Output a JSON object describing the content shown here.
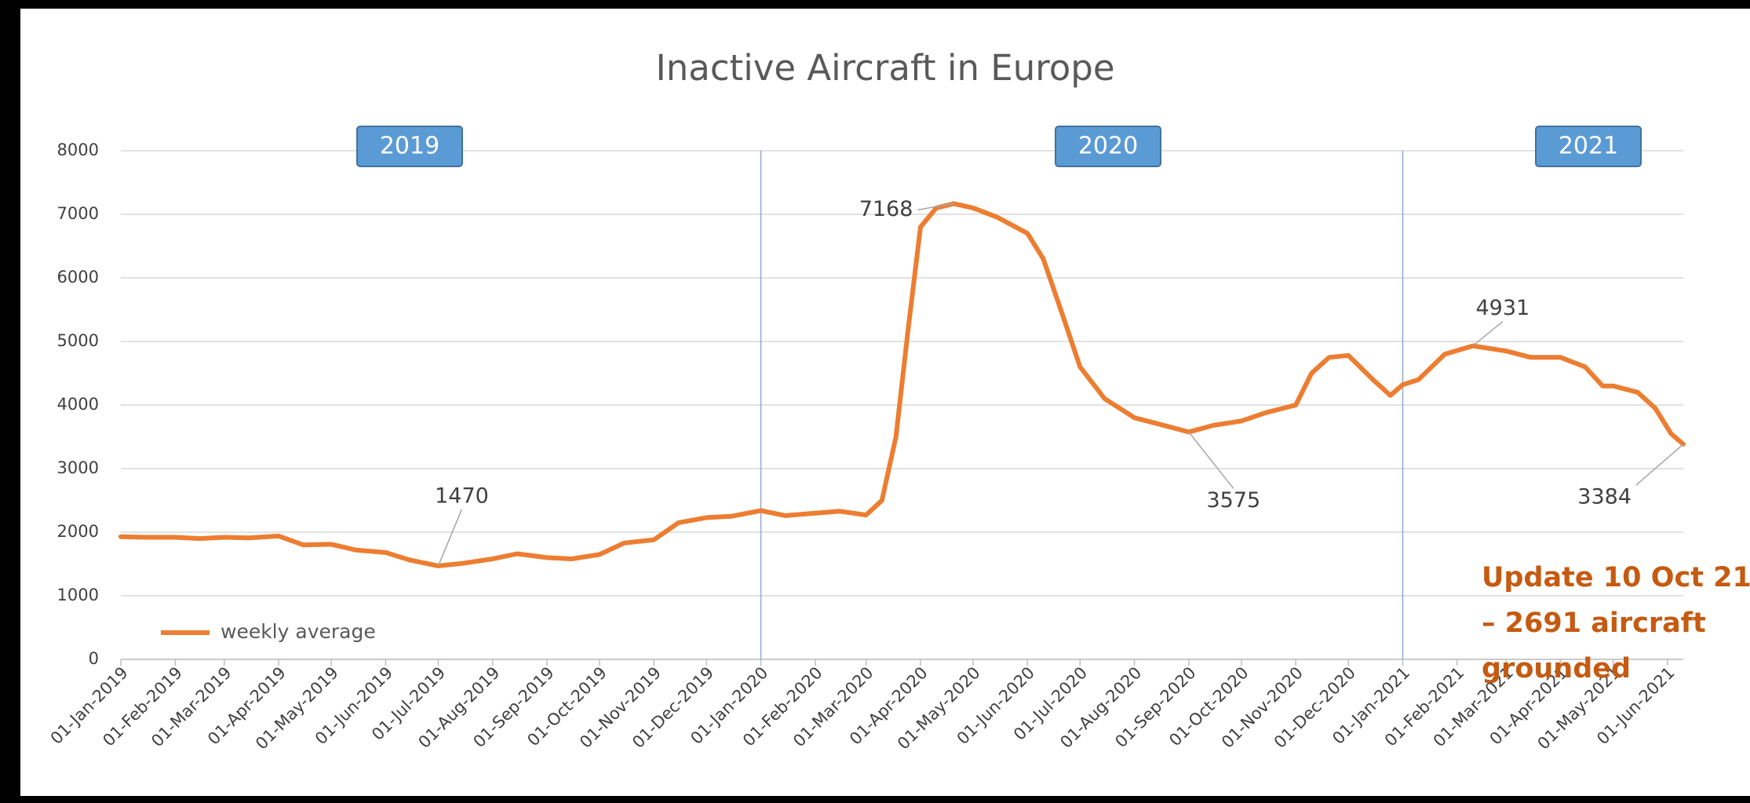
{
  "chart_data": {
    "type": "line",
    "title": "Inactive Aircraft in Europe",
    "x": [
      "01-Jan-2019",
      "15-Jan-2019",
      "01-Feb-2019",
      "15-Feb-2019",
      "01-Mar-2019",
      "15-Mar-2019",
      "01-Apr-2019",
      "15-Apr-2019",
      "01-May-2019",
      "15-May-2019",
      "01-Jun-2019",
      "15-Jun-2019",
      "01-Jul-2019",
      "15-Jul-2019",
      "01-Aug-2019",
      "15-Aug-2019",
      "01-Sep-2019",
      "15-Sep-2019",
      "01-Oct-2019",
      "15-Oct-2019",
      "01-Nov-2019",
      "15-Nov-2019",
      "01-Dec-2019",
      "15-Dec-2019",
      "01-Jan-2020",
      "15-Jan-2020",
      "01-Feb-2020",
      "15-Feb-2020",
      "01-Mar-2020",
      "10-Mar-2020",
      "18-Mar-2020",
      "25-Mar-2020",
      "01-Apr-2020",
      "10-Apr-2020",
      "20-Apr-2020",
      "01-May-2020",
      "15-May-2020",
      "01-Jun-2020",
      "10-Jun-2020",
      "20-Jun-2020",
      "01-Jul-2020",
      "15-Jul-2020",
      "01-Aug-2020",
      "15-Aug-2020",
      "01-Sep-2020",
      "15-Sep-2020",
      "01-Oct-2020",
      "15-Oct-2020",
      "01-Nov-2020",
      "10-Nov-2020",
      "20-Nov-2020",
      "01-Dec-2020",
      "15-Dec-2020",
      "25-Dec-2020",
      "01-Jan-2021",
      "10-Jan-2021",
      "25-Jan-2021",
      "10-Feb-2021",
      "01-Mar-2021",
      "15-Mar-2021",
      "01-Apr-2021",
      "15-Apr-2021",
      "25-Apr-2021",
      "01-May-2021",
      "15-May-2021",
      "25-May-2021",
      "03-Jun-2021",
      "10-Jun-2021"
    ],
    "series": [
      {
        "name": "weekly average",
        "color": "#ed7d31",
        "values": [
          1930,
          1920,
          1920,
          1900,
          1920,
          1910,
          1940,
          1800,
          1810,
          1720,
          1680,
          1560,
          1470,
          1510,
          1580,
          1660,
          1600,
          1580,
          1650,
          1830,
          1880,
          2150,
          2230,
          2250,
          2340,
          2260,
          2300,
          2330,
          2270,
          2500,
          3500,
          5200,
          6800,
          7100,
          7168,
          7100,
          6950,
          6700,
          6300,
          5500,
          4600,
          4100,
          3800,
          3700,
          3575,
          3680,
          3750,
          3880,
          4000,
          4500,
          4750,
          4780,
          4400,
          4150,
          4320,
          4400,
          4800,
          4931,
          4850,
          4750,
          4750,
          4600,
          4300,
          4300,
          4200,
          3950,
          3550,
          3384
        ]
      }
    ],
    "xlim": [
      "01-Jan-2019",
      "10-Jun-2021"
    ],
    "xticks": [
      "01-Jan-2019",
      "01-Feb-2019",
      "01-Mar-2019",
      "01-Apr-2019",
      "01-May-2019",
      "01-Jun-2019",
      "01-Jul-2019",
      "01-Aug-2019",
      "01-Sep-2019",
      "01-Oct-2019",
      "01-Nov-2019",
      "01-Dec-2019",
      "01-Jan-2020",
      "01-Feb-2020",
      "01-Mar-2020",
      "01-Apr-2020",
      "01-May-2020",
      "01-Jun-2020",
      "01-Jul-2020",
      "01-Aug-2020",
      "01-Sep-2020",
      "01-Oct-2020",
      "01-Nov-2020",
      "01-Dec-2020",
      "01-Jan-2021",
      "01-Feb-2021",
      "01-Mar-2021",
      "01-Apr-2021",
      "01-May-2021",
      "01-Jun-2021"
    ],
    "ylim": [
      0,
      8000
    ],
    "yticks": [
      0,
      1000,
      2000,
      3000,
      4000,
      5000,
      6000,
      7000,
      8000
    ],
    "grid": true,
    "legend": "lower left",
    "data_labels": [
      {
        "x": "01-Jul-2019",
        "value": 1470
      },
      {
        "x": "20-Apr-2020",
        "value": 7168
      },
      {
        "x": "01-Sep-2020",
        "value": 3575
      },
      {
        "x": "10-Feb-2021",
        "value": 4931
      },
      {
        "x": "10-Jun-2021",
        "value": 3384
      }
    ],
    "year_labels": [
      "2019",
      "2020",
      "2021"
    ],
    "note_lines": [
      "Update 10 Oct 21",
      "– 2691 aircraft",
      "grounded"
    ]
  }
}
